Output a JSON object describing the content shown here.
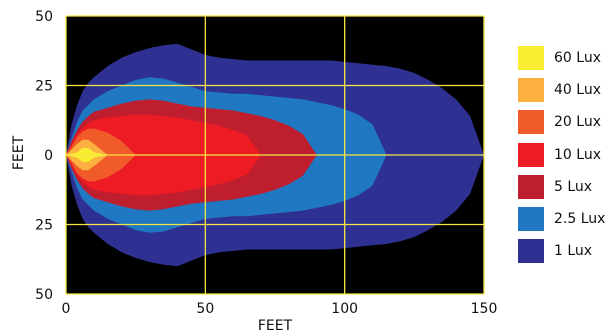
{
  "chart_data": {
    "type": "heatmap",
    "title": "",
    "xlabel": "FEET",
    "ylabel": "FEET",
    "xlim": [
      0,
      150
    ],
    "ylim": [
      -50,
      50
    ],
    "x_ticks": [
      "0",
      "50",
      "100",
      "150"
    ],
    "x_tick_values": [
      0,
      50,
      100,
      150
    ],
    "y_ticks": [
      "50",
      "25",
      "0",
      "25",
      "50"
    ],
    "y_tick_values": [
      50,
      25,
      0,
      -25,
      -50
    ],
    "grid": true,
    "grid_color": "#f5e642",
    "background": "#000000",
    "legend_position": "right",
    "x_profile": [
      0,
      2,
      4,
      6,
      8,
      10,
      15,
      20,
      25,
      30,
      35,
      40,
      45,
      50,
      55,
      60,
      65,
      70,
      75,
      80,
      85,
      90,
      95,
      100,
      105,
      110,
      115,
      120,
      125,
      130,
      135,
      140,
      145,
      150
    ],
    "series": [
      {
        "name": "1 Lux",
        "color": "#2e3192",
        "half_width": [
          0,
          11,
          18,
          23,
          26,
          28,
          32,
          35,
          37,
          38.5,
          39.5,
          40,
          38,
          36,
          35,
          34.5,
          34,
          34,
          34,
          34,
          34,
          34,
          34,
          33.5,
          33,
          32.5,
          32,
          31,
          29.5,
          27,
          24,
          20,
          14,
          0
        ]
      },
      {
        "name": "2.5 Lux",
        "color": "#1f78c1",
        "half_width": [
          0,
          6,
          12,
          16,
          18,
          20,
          23,
          25,
          27,
          28,
          27.5,
          26,
          24.5,
          23,
          22.5,
          22,
          22,
          21.5,
          21,
          20.5,
          20,
          19,
          18,
          16.5,
          14.5,
          11,
          0,
          0,
          0,
          0,
          0,
          0,
          0,
          0
        ]
      },
      {
        "name": "5 Lux",
        "color": "#be1e2d",
        "half_width": [
          0,
          5,
          9,
          12,
          14,
          15.5,
          17,
          18.5,
          19.5,
          20,
          19.5,
          18.5,
          17.5,
          17,
          16.5,
          16,
          15,
          14,
          12.5,
          10.5,
          7.5,
          0,
          0,
          0,
          0,
          0,
          0,
          0,
          0,
          0,
          0,
          0,
          0,
          0
        ]
      },
      {
        "name": "10 Lux",
        "color": "#ed1c24",
        "half_width": [
          0,
          4,
          7.5,
          10,
          11.5,
          12.5,
          13.5,
          14,
          14.5,
          14.5,
          14,
          13.5,
          12.5,
          11.5,
          10.5,
          9,
          7,
          0,
          0,
          0,
          0,
          0,
          0,
          0,
          0,
          0,
          0,
          0,
          0,
          0,
          0,
          0,
          0,
          0
        ]
      },
      {
        "name": "20 Lux",
        "color": "#f15a29",
        "half_width": [
          0,
          3,
          6.5,
          8.5,
          9.5,
          9.5,
          8,
          5,
          0,
          0,
          0,
          0,
          0,
          0,
          0,
          0,
          0,
          0,
          0,
          0,
          0,
          0,
          0,
          0,
          0,
          0,
          0,
          0,
          0,
          0,
          0,
          0,
          0,
          0
        ]
      },
      {
        "name": "40 Lux",
        "color": "#fbb040",
        "half_width": [
          0,
          2,
          4,
          5.5,
          5.5,
          4,
          0,
          0,
          0,
          0,
          0,
          0,
          0,
          0,
          0,
          0,
          0,
          0,
          0,
          0,
          0,
          0,
          0,
          0,
          0,
          0,
          0,
          0,
          0,
          0,
          0,
          0,
          0,
          0
        ]
      },
      {
        "name": "60 Lux",
        "color": "#f9ed32",
        "half_width": [
          0,
          0,
          1,
          2.5,
          2.5,
          1,
          0,
          0,
          0,
          0,
          0,
          0,
          0,
          0,
          0,
          0,
          0,
          0,
          0,
          0,
          0,
          0,
          0,
          0,
          0,
          0,
          0,
          0,
          0,
          0,
          0,
          0,
          0,
          0
        ]
      }
    ]
  },
  "legend": [
    {
      "label": "60 Lux",
      "color": "#f9ed32"
    },
    {
      "label": "40 Lux",
      "color": "#fbb040"
    },
    {
      "label": "20 Lux",
      "color": "#f15a29"
    },
    {
      "label": "10 Lux",
      "color": "#ed1c24"
    },
    {
      "label": "5 Lux",
      "color": "#be1e2d"
    },
    {
      "label": "2.5 Lux",
      "color": "#1f78c1"
    },
    {
      "label": "1 Lux",
      "color": "#2e3192"
    }
  ]
}
